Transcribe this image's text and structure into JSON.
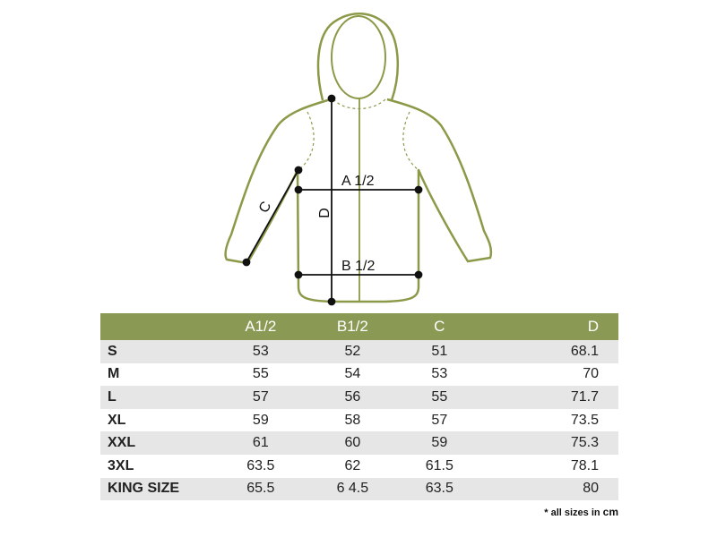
{
  "diagram": {
    "labels": {
      "a": "A 1/2",
      "b": "B 1/2",
      "c": "C",
      "d": "D"
    },
    "colors": {
      "outline": "#8a9a48",
      "measure": "#111111"
    }
  },
  "table": {
    "headers": [
      "",
      "A1/2",
      "B1/2",
      "C",
      "D"
    ],
    "rows": [
      {
        "size": "S",
        "a": "53",
        "b": "52",
        "c": "51",
        "d": "68.1"
      },
      {
        "size": "M",
        "a": "55",
        "b": "54",
        "c": "53",
        "d": "70"
      },
      {
        "size": "L",
        "a": "57",
        "b": "56",
        "c": "55",
        "d": "71.7"
      },
      {
        "size": "XL",
        "a": "59",
        "b": "58",
        "c": "57",
        "d": "73.5"
      },
      {
        "size": "XXL",
        "a": "61",
        "b": "60",
        "c": "59",
        "d": "75.3"
      },
      {
        "size": "3XL",
        "a": "63.5",
        "b": "62",
        "c": "61.5",
        "d": "78.1"
      },
      {
        "size": "KING SIZE",
        "a": "65.5",
        "b": "6 4.5",
        "c": "63.5",
        "d": "80"
      }
    ],
    "header_color": "#8a9a55"
  },
  "footnote": {
    "text": "* all sizes in ",
    "unit": "cm"
  }
}
